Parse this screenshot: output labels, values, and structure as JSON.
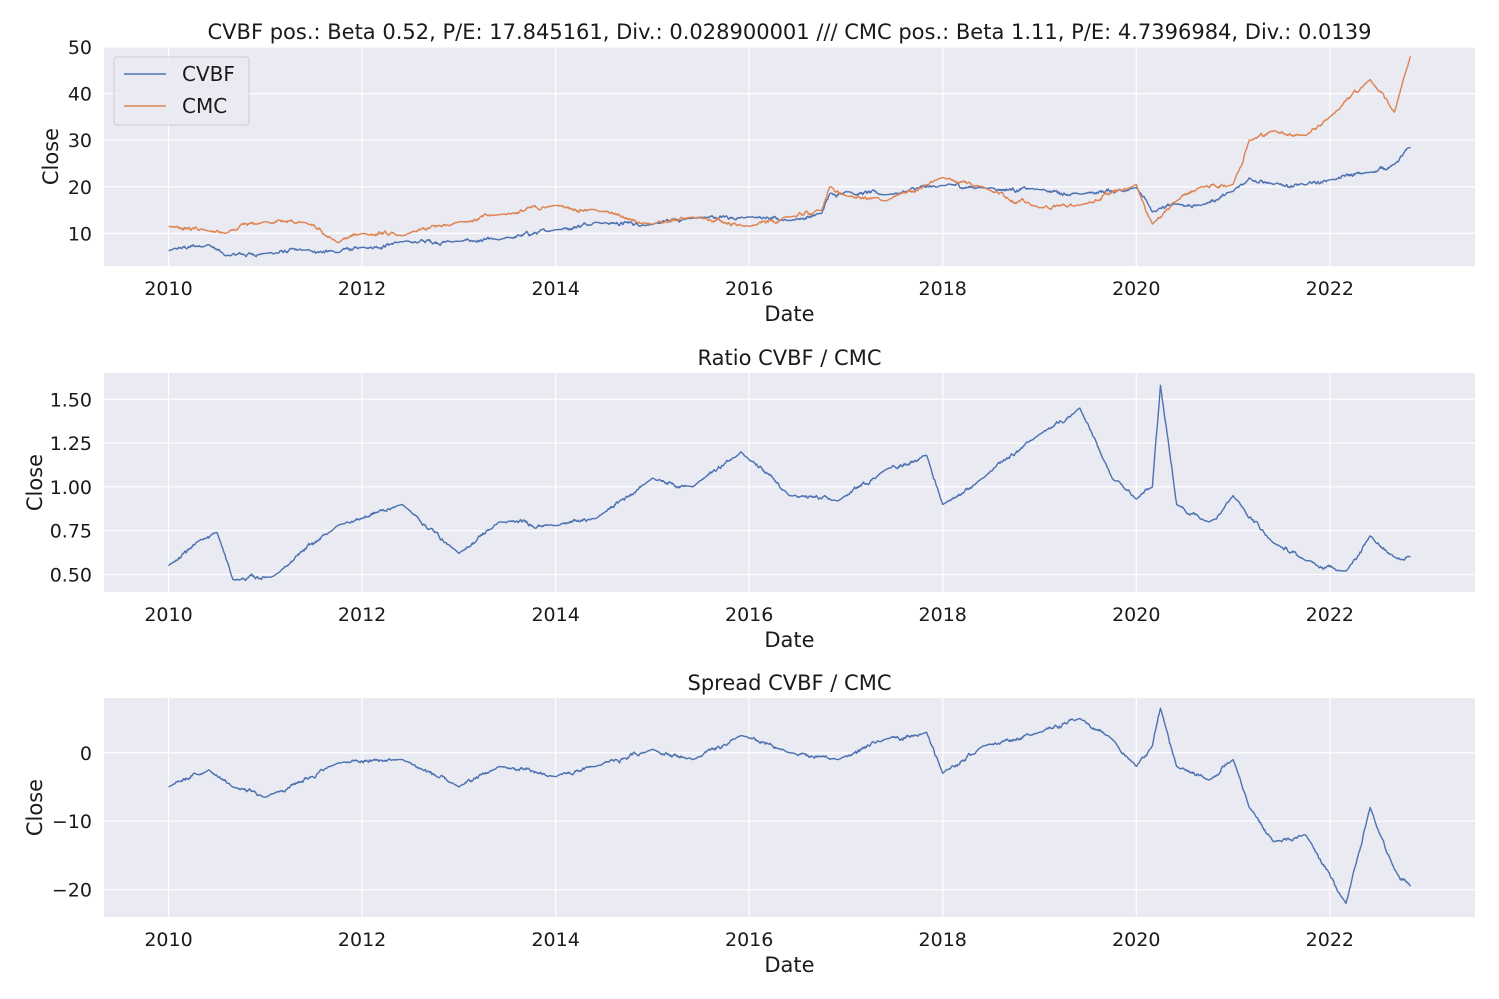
{
  "chart_data": [
    {
      "type": "line",
      "title": "CVBF pos.: Beta 0.52, P/E: 17.845161, Div.: 0.028900001 /// CMC pos.: Beta 1.11, P/E: 4.7396984, Div.: 0.0139",
      "xlabel": "Date",
      "ylabel": "Close",
      "xlim": [
        "2009-05-01",
        "2023-07-01"
      ],
      "ylim": [
        3,
        50
      ],
      "x_ticks": [
        "2010",
        "2012",
        "2014",
        "2016",
        "2018",
        "2020",
        "2022"
      ],
      "y_ticks": [
        10,
        20,
        30,
        40,
        50
      ],
      "grid": true,
      "legend": "top-left",
      "series": [
        {
          "name": "CVBF",
          "color": "#4c72b0",
          "x": [
            "2010-01",
            "2010-06",
            "2010-08",
            "2011-01",
            "2011-06",
            "2011-10",
            "2012-01",
            "2012-06",
            "2013-01",
            "2013-06",
            "2014-01",
            "2014-06",
            "2015-01",
            "2015-06",
            "2016-01",
            "2016-06",
            "2016-10",
            "2016-11",
            "2017-01",
            "2017-06",
            "2018-01",
            "2018-06",
            "2019-01",
            "2019-06",
            "2020-01",
            "2020-03",
            "2020-06",
            "2020-09",
            "2021-01",
            "2021-03",
            "2021-06",
            "2021-10",
            "2022-01",
            "2022-06",
            "2022-09",
            "2022-11"
          ],
          "y": [
            6.3,
            7.6,
            5.2,
            5.7,
            6.4,
            5.9,
            7.0,
            8.2,
            8.3,
            8.6,
            10.8,
            12.4,
            11.9,
            13.3,
            13.5,
            12.8,
            14.3,
            18.5,
            19.0,
            18.3,
            20.3,
            19.8,
            19.4,
            18.4,
            19.8,
            14.6,
            16.3,
            16.0,
            19.0,
            21.9,
            20.5,
            20.4,
            21.5,
            23.1,
            24.8,
            28.5
          ]
        },
        {
          "name": "CMC",
          "color": "#dd8452",
          "x": [
            "2010-01",
            "2010-06",
            "2010-08",
            "2011-01",
            "2011-06",
            "2011-10",
            "2012-01",
            "2012-06",
            "2013-01",
            "2013-06",
            "2014-01",
            "2014-06",
            "2015-01",
            "2015-06",
            "2016-01",
            "2016-06",
            "2016-10",
            "2016-11",
            "2017-01",
            "2017-06",
            "2018-01",
            "2018-06",
            "2019-01",
            "2019-06",
            "2020-01",
            "2020-03",
            "2020-06",
            "2020-09",
            "2021-01",
            "2021-03",
            "2021-06",
            "2021-10",
            "2022-01",
            "2022-06",
            "2022-09",
            "2022-11"
          ],
          "y": [
            11.5,
            10.5,
            10.0,
            12.5,
            12.3,
            8.0,
            10.0,
            9.5,
            12.5,
            14.0,
            16.0,
            15.0,
            12.0,
            13.5,
            11.5,
            13.5,
            15.0,
            20.0,
            18.0,
            17.0,
            22.0,
            20.0,
            15.5,
            16.0,
            20.5,
            12.0,
            17.0,
            20.0,
            20.5,
            30.0,
            32.0,
            31.0,
            35.0,
            43.0,
            36.0,
            48.0
          ]
        }
      ]
    },
    {
      "type": "line",
      "title": "Ratio CVBF / CMC",
      "xlabel": "Date",
      "ylabel": "Close",
      "xlim": [
        "2009-05-01",
        "2023-07-01"
      ],
      "ylim": [
        0.4,
        1.65
      ],
      "x_ticks": [
        "2010",
        "2012",
        "2014",
        "2016",
        "2018",
        "2020",
        "2022"
      ],
      "y_ticks": [
        "0.50",
        "0.75",
        "1.00",
        "1.25",
        "1.50"
      ],
      "grid": true,
      "series": [
        {
          "color": "#4c72b0",
          "x": [
            "2010-01",
            "2010-05",
            "2010-07",
            "2010-09",
            "2011-02",
            "2011-10",
            "2012-06",
            "2013-01",
            "2013-06",
            "2014-01",
            "2014-06",
            "2015-01",
            "2015-06",
            "2015-12",
            "2016-06",
            "2016-12",
            "2017-06",
            "2017-11",
            "2018-01",
            "2018-06",
            "2019-01",
            "2019-06",
            "2019-10",
            "2020-01",
            "2020-03",
            "2020-04",
            "2020-06",
            "2020-10",
            "2021-01",
            "2021-06",
            "2021-10",
            "2022-03",
            "2022-06",
            "2022-09",
            "2022-11"
          ],
          "y": [
            0.55,
            0.7,
            0.74,
            0.47,
            0.49,
            0.78,
            0.9,
            0.62,
            0.8,
            0.78,
            0.82,
            1.05,
            1.0,
            1.2,
            0.95,
            0.92,
            1.1,
            1.18,
            0.9,
            1.05,
            1.3,
            1.45,
            1.05,
            0.93,
            1.0,
            1.58,
            0.9,
            0.8,
            0.95,
            0.68,
            0.58,
            0.52,
            0.72,
            0.6,
            0.6
          ]
        }
      ]
    },
    {
      "type": "line",
      "title": "Spread CVBF / CMC",
      "xlabel": "Date",
      "ylabel": "Close",
      "xlim": [
        "2009-05-01",
        "2023-07-01"
      ],
      "ylim": [
        -24,
        8
      ],
      "x_ticks": [
        "2010",
        "2012",
        "2014",
        "2016",
        "2018",
        "2020",
        "2022"
      ],
      "y_ticks": [
        "−20",
        "−10",
        "0"
      ],
      "grid": true,
      "series": [
        {
          "color": "#4c72b0",
          "x": [
            "2010-01",
            "2010-06",
            "2010-09",
            "2011-01",
            "2011-10",
            "2012-06",
            "2013-01",
            "2013-06",
            "2014-01",
            "2014-06",
            "2015-01",
            "2015-06",
            "2015-12",
            "2016-06",
            "2016-12",
            "2017-06",
            "2017-11",
            "2018-01",
            "2018-06",
            "2019-01",
            "2019-06",
            "2019-10",
            "2020-01",
            "2020-03",
            "2020-04",
            "2020-06",
            "2020-10",
            "2021-01",
            "2021-03",
            "2021-06",
            "2021-10",
            "2022-03",
            "2022-06",
            "2022-09",
            "2022-11"
          ],
          "y": [
            -5,
            -2.5,
            -5,
            -6.5,
            -1.5,
            -1,
            -5,
            -2,
            -3.5,
            -2,
            0.5,
            -1,
            2.5,
            0,
            -1,
            2,
            3,
            -3,
            1,
            3,
            5,
            2,
            -2,
            1,
            6.5,
            -2,
            -4,
            -1,
            -8,
            -13,
            -12,
            -22,
            -8,
            -17,
            -19.5
          ]
        }
      ]
    }
  ]
}
